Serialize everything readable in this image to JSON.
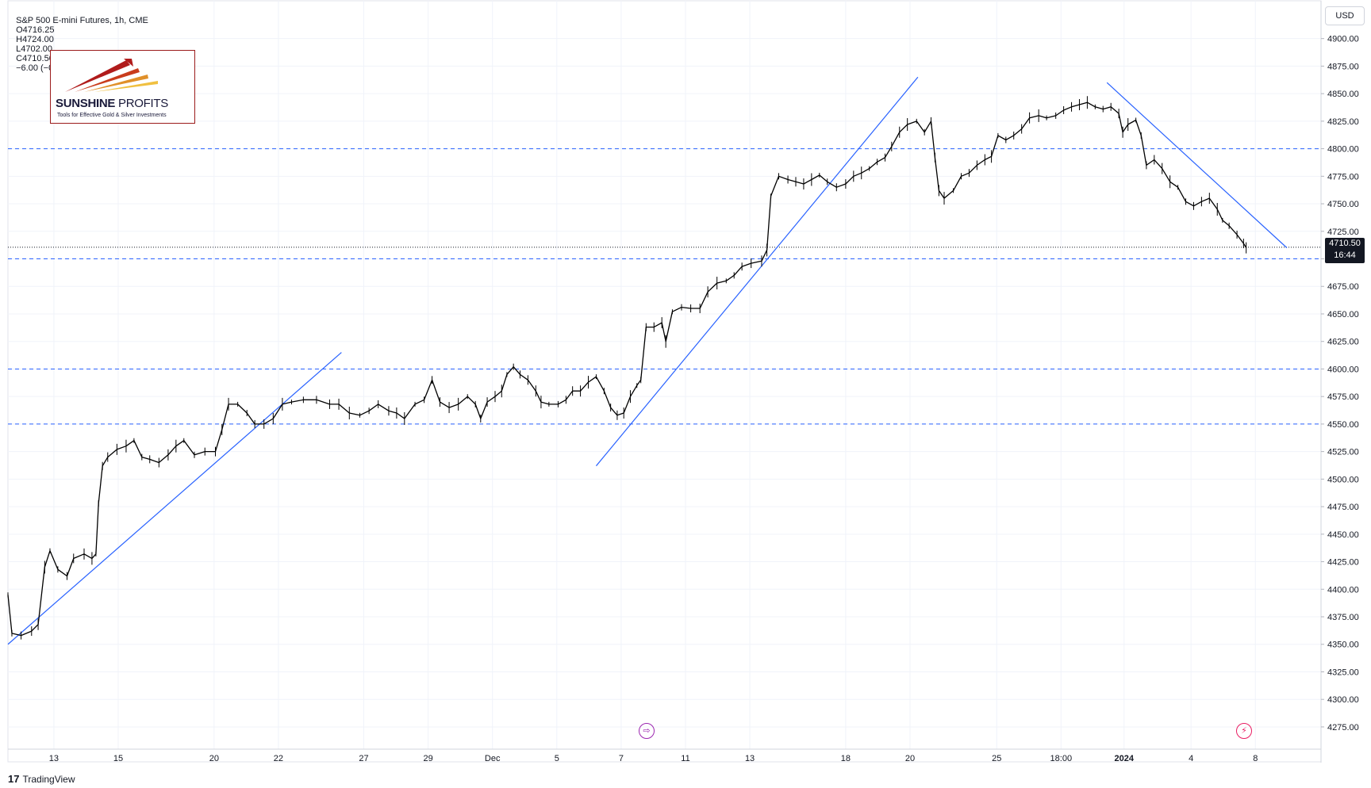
{
  "header": {
    "symbol": "S&P 500 E-mini Futures, 1h, CME",
    "open": "O4716.25",
    "high": "H4724.00",
    "low": "L4702.00",
    "close": "C4710.50",
    "change": "−6.00 (−0.13%)"
  },
  "currency": "USD",
  "logo": {
    "name_bold": "SUNSHINE",
    "name_light": " PROFITS",
    "tagline": "Tools for Effective Gold & Silver Investments"
  },
  "last_price": {
    "price": "4710.50",
    "countdown": "16:44"
  },
  "footer": {
    "brand": "TradingView"
  },
  "icons": {
    "event_left": "arrow-forward-circle-icon",
    "event_right": "lightning-icon"
  },
  "colors": {
    "trendline": "#2962ff",
    "level": "#2962ff",
    "candle": "#000000",
    "logo_border": "#9b1b1b",
    "event_left": "#9c27b0",
    "event_right": "#e91e63"
  },
  "chart_data": {
    "type": "line",
    "title": "S&P 500 E-mini Futures, 1h, CME",
    "ylim": [
      4262,
      4912
    ],
    "y_ticks": [
      4275,
      4300,
      4325,
      4350,
      4375,
      4400,
      4425,
      4450,
      4475,
      4500,
      4525,
      4550,
      4575,
      4600,
      4625,
      4650,
      4675,
      4700,
      4725,
      4750,
      4775,
      4800,
      4825,
      4850,
      4875,
      4900
    ],
    "y_tick_labels": [
      "4275.00",
      "4300.00",
      "4325.00",
      "4350.00",
      "4375.00",
      "4400.00",
      "4425.00",
      "4450.00",
      "4475.00",
      "4500.00",
      "4525.00",
      "4550.00",
      "4575.00",
      "4600.00",
      "4625.00",
      "4650.00",
      "4675.00",
      "4700.00",
      "4725.00",
      "4750.00",
      "4775.00",
      "4800.00",
      "4825.00",
      "4850.00",
      "4875.00",
      "4900.00"
    ],
    "x_range": [
      0,
      100
    ],
    "x_ticks": [
      {
        "x": 3.5,
        "label": "13"
      },
      {
        "x": 8.4,
        "label": "15"
      },
      {
        "x": 15.7,
        "label": "20"
      },
      {
        "x": 20.6,
        "label": "22"
      },
      {
        "x": 27.1,
        "label": "27"
      },
      {
        "x": 32.0,
        "label": "29"
      },
      {
        "x": 36.9,
        "label": "Dec"
      },
      {
        "x": 41.8,
        "label": "5"
      },
      {
        "x": 46.7,
        "label": "7"
      },
      {
        "x": 51.6,
        "label": "11"
      },
      {
        "x": 56.5,
        "label": "13"
      },
      {
        "x": 63.8,
        "label": "18"
      },
      {
        "x": 68.7,
        "label": "20"
      },
      {
        "x": 75.3,
        "label": "25"
      },
      {
        "x": 80.2,
        "label": "18:00"
      },
      {
        "x": 85.0,
        "label": "2024"
      },
      {
        "x": 90.1,
        "label": "4"
      },
      {
        "x": 95.0,
        "label": "8"
      }
    ],
    "series": [
      {
        "points": [
          [
            0.0,
            4395
          ],
          [
            0.3,
            4360
          ],
          [
            1.0,
            4358
          ],
          [
            1.8,
            4362
          ],
          [
            2.3,
            4368
          ],
          [
            2.8,
            4420
          ],
          [
            3.2,
            4435
          ],
          [
            3.8,
            4418
          ],
          [
            4.5,
            4412
          ],
          [
            5.0,
            4428
          ],
          [
            5.8,
            4432
          ],
          [
            6.4,
            4428
          ],
          [
            6.7,
            4432
          ],
          [
            6.9,
            4478
          ],
          [
            7.2,
            4512
          ],
          [
            7.6,
            4520
          ],
          [
            8.3,
            4527
          ],
          [
            9.0,
            4530
          ],
          [
            9.6,
            4535
          ],
          [
            10.2,
            4520
          ],
          [
            10.8,
            4518
          ],
          [
            11.5,
            4515
          ],
          [
            12.2,
            4522
          ],
          [
            12.8,
            4530
          ],
          [
            13.4,
            4535
          ],
          [
            14.2,
            4522
          ],
          [
            15.0,
            4525
          ],
          [
            15.8,
            4525
          ],
          [
            16.3,
            4545
          ],
          [
            16.8,
            4568
          ],
          [
            17.5,
            4568
          ],
          [
            18.2,
            4560
          ],
          [
            18.8,
            4550
          ],
          [
            19.5,
            4550
          ],
          [
            20.2,
            4555
          ],
          [
            20.9,
            4568
          ],
          [
            21.6,
            4570
          ],
          [
            22.5,
            4572
          ],
          [
            23.5,
            4572
          ],
          [
            24.5,
            4568
          ],
          [
            25.2,
            4568
          ],
          [
            26.0,
            4560
          ],
          [
            26.8,
            4558
          ],
          [
            27.5,
            4562
          ],
          [
            28.2,
            4568
          ],
          [
            29.0,
            4562
          ],
          [
            29.6,
            4560
          ],
          [
            30.2,
            4555
          ],
          [
            31.0,
            4568
          ],
          [
            31.7,
            4572
          ],
          [
            32.3,
            4590
          ],
          [
            32.9,
            4570
          ],
          [
            33.6,
            4565
          ],
          [
            34.3,
            4568
          ],
          [
            35.0,
            4575
          ],
          [
            35.6,
            4568
          ],
          [
            36.0,
            4555
          ],
          [
            36.5,
            4570
          ],
          [
            37.1,
            4575
          ],
          [
            37.6,
            4580
          ],
          [
            38.0,
            4595
          ],
          [
            38.5,
            4602
          ],
          [
            39.0,
            4595
          ],
          [
            39.6,
            4590
          ],
          [
            40.2,
            4580
          ],
          [
            40.6,
            4570
          ],
          [
            41.2,
            4568
          ],
          [
            41.9,
            4568
          ],
          [
            42.5,
            4572
          ],
          [
            43.0,
            4580
          ],
          [
            43.6,
            4580
          ],
          [
            44.2,
            4588
          ],
          [
            44.8,
            4593
          ],
          [
            45.4,
            4580
          ],
          [
            45.9,
            4565
          ],
          [
            46.4,
            4558
          ],
          [
            46.9,
            4560
          ],
          [
            47.4,
            4575
          ],
          [
            47.9,
            4585
          ],
          [
            48.2,
            4590
          ],
          [
            48.6,
            4638
          ],
          [
            49.2,
            4638
          ],
          [
            49.8,
            4642
          ],
          [
            50.1,
            4625
          ],
          [
            50.6,
            4652
          ],
          [
            51.3,
            4656
          ],
          [
            52.0,
            4655
          ],
          [
            52.7,
            4655
          ],
          [
            53.3,
            4670
          ],
          [
            54.0,
            4678
          ],
          [
            54.7,
            4680
          ],
          [
            55.3,
            4685
          ],
          [
            55.9,
            4693
          ],
          [
            56.6,
            4696
          ],
          [
            57.4,
            4698
          ],
          [
            57.8,
            4708
          ],
          [
            58.1,
            4757
          ],
          [
            58.7,
            4775
          ],
          [
            59.4,
            4772
          ],
          [
            60.0,
            4770
          ],
          [
            60.6,
            4768
          ],
          [
            61.2,
            4772
          ],
          [
            61.8,
            4776
          ],
          [
            62.4,
            4770
          ],
          [
            63.1,
            4765
          ],
          [
            63.8,
            4768
          ],
          [
            64.4,
            4775
          ],
          [
            65.0,
            4778
          ],
          [
            65.6,
            4782
          ],
          [
            66.2,
            4788
          ],
          [
            66.8,
            4792
          ],
          [
            67.3,
            4802
          ],
          [
            67.9,
            4815
          ],
          [
            68.5,
            4822
          ],
          [
            69.2,
            4825
          ],
          [
            69.8,
            4815
          ],
          [
            70.3,
            4825
          ],
          [
            70.6,
            4792
          ],
          [
            70.9,
            4762
          ],
          [
            71.3,
            4755
          ],
          [
            72.0,
            4762
          ],
          [
            72.6,
            4775
          ],
          [
            73.2,
            4778
          ],
          [
            73.8,
            4785
          ],
          [
            74.4,
            4790
          ],
          [
            74.9,
            4793
          ],
          [
            75.4,
            4812
          ],
          [
            76.0,
            4808
          ],
          [
            76.6,
            4812
          ],
          [
            77.2,
            4818
          ],
          [
            77.8,
            4828
          ],
          [
            78.5,
            4830
          ],
          [
            79.1,
            4828
          ],
          [
            79.8,
            4830
          ],
          [
            80.4,
            4835
          ],
          [
            81.0,
            4838
          ],
          [
            81.6,
            4840
          ],
          [
            82.2,
            4842
          ],
          [
            82.8,
            4838
          ],
          [
            83.4,
            4836
          ],
          [
            84.0,
            4838
          ],
          [
            84.6,
            4832
          ],
          [
            84.9,
            4815
          ],
          [
            85.3,
            4822
          ],
          [
            85.9,
            4826
          ],
          [
            86.3,
            4812
          ],
          [
            86.7,
            4785
          ],
          [
            87.3,
            4790
          ],
          [
            87.9,
            4782
          ],
          [
            88.5,
            4770
          ],
          [
            89.1,
            4765
          ],
          [
            89.7,
            4752
          ],
          [
            90.3,
            4748
          ],
          [
            90.9,
            4752
          ],
          [
            91.5,
            4755
          ],
          [
            92.1,
            4745
          ],
          [
            92.5,
            4735
          ],
          [
            93.0,
            4730
          ],
          [
            93.6,
            4722
          ],
          [
            94.1,
            4714
          ],
          [
            94.3,
            4710
          ]
        ]
      }
    ],
    "horizontal_levels": [
      4800,
      4700,
      4600,
      4550
    ],
    "last_price_level": 4710.5,
    "trendlines": [
      {
        "from": [
          0.0,
          4350
        ],
        "to": [
          25.4,
          4615
        ]
      },
      {
        "from": [
          44.8,
          4512
        ],
        "to": [
          69.3,
          4865
        ]
      },
      {
        "from": [
          83.7,
          4860
        ],
        "to": [
          97.4,
          4710
        ]
      }
    ],
    "grid": true,
    "legend": "none"
  }
}
